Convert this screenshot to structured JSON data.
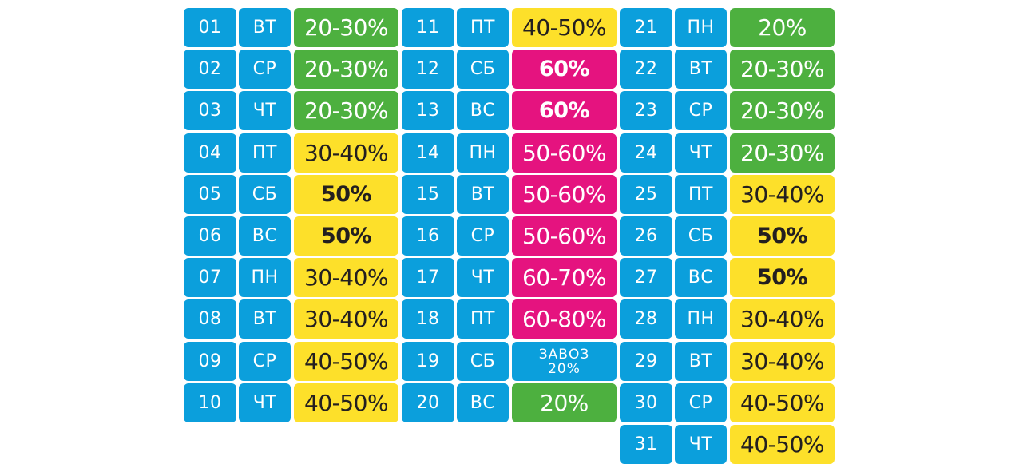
{
  "colors": {
    "blue": "#0b9fdc",
    "green": "#4db03f",
    "yellow": "#fde02a",
    "pink": "#e5137f"
  },
  "calendar": [
    {
      "rows": [
        {
          "num": "01",
          "day": "ВТ",
          "value": "20-30%",
          "color": "green",
          "bold": false
        },
        {
          "num": "02",
          "day": "СР",
          "value": "20-30%",
          "color": "green",
          "bold": false
        },
        {
          "num": "03",
          "day": "ЧТ",
          "value": "20-30%",
          "color": "green",
          "bold": false
        },
        {
          "num": "04",
          "day": "ПТ",
          "value": "30-40%",
          "color": "yellow",
          "bold": false
        },
        {
          "num": "05",
          "day": "СБ",
          "value": "50%",
          "color": "yellow",
          "bold": true
        },
        {
          "num": "06",
          "day": "ВС",
          "value": "50%",
          "color": "yellow",
          "bold": true
        },
        {
          "num": "07",
          "day": "ПН",
          "value": "30-40%",
          "color": "yellow",
          "bold": false
        },
        {
          "num": "08",
          "day": "ВТ",
          "value": "30-40%",
          "color": "yellow",
          "bold": false
        },
        {
          "num": "09",
          "day": "СР",
          "value": "40-50%",
          "color": "yellow",
          "bold": false
        },
        {
          "num": "10",
          "day": "ЧТ",
          "value": "40-50%",
          "color": "yellow",
          "bold": false
        }
      ]
    },
    {
      "rows": [
        {
          "num": "11",
          "day": "ПТ",
          "value": "40-50%",
          "color": "yellow",
          "bold": false
        },
        {
          "num": "12",
          "day": "СБ",
          "value": "60%",
          "color": "pink",
          "bold": true
        },
        {
          "num": "13",
          "day": "ВС",
          "value": "60%",
          "color": "pink",
          "bold": true
        },
        {
          "num": "14",
          "day": "ПН",
          "value": "50-60%",
          "color": "pink",
          "bold": false
        },
        {
          "num": "15",
          "day": "ВТ",
          "value": "50-60%",
          "color": "pink",
          "bold": false
        },
        {
          "num": "16",
          "day": "СР",
          "value": "50-60%",
          "color": "pink",
          "bold": false
        },
        {
          "num": "17",
          "day": "ЧТ",
          "value": "60-70%",
          "color": "pink",
          "bold": false
        },
        {
          "num": "18",
          "day": "ПТ",
          "value": "60-80%",
          "color": "pink",
          "bold": false
        },
        {
          "num": "19",
          "day": "СБ",
          "value": "ЗАВОЗ",
          "value2": "20%",
          "color": "blue",
          "bold": false
        },
        {
          "num": "20",
          "day": "ВС",
          "value": "20%",
          "color": "green",
          "bold": false
        }
      ]
    },
    {
      "rows": [
        {
          "num": "21",
          "day": "ПН",
          "value": "20%",
          "color": "green",
          "bold": false
        },
        {
          "num": "22",
          "day": "ВТ",
          "value": "20-30%",
          "color": "green",
          "bold": false
        },
        {
          "num": "23",
          "day": "СР",
          "value": "20-30%",
          "color": "green",
          "bold": false
        },
        {
          "num": "24",
          "day": "ЧТ",
          "value": "20-30%",
          "color": "green",
          "bold": false
        },
        {
          "num": "25",
          "day": "ПТ",
          "value": "30-40%",
          "color": "yellow",
          "bold": false
        },
        {
          "num": "26",
          "day": "СБ",
          "value": "50%",
          "color": "yellow",
          "bold": true
        },
        {
          "num": "27",
          "day": "ВС",
          "value": "50%",
          "color": "yellow",
          "bold": true
        },
        {
          "num": "28",
          "day": "ПН",
          "value": "30-40%",
          "color": "yellow",
          "bold": false
        },
        {
          "num": "29",
          "day": "ВТ",
          "value": "30-40%",
          "color": "yellow",
          "bold": false
        },
        {
          "num": "30",
          "day": "СР",
          "value": "40-50%",
          "color": "yellow",
          "bold": false
        },
        {
          "num": "31",
          "day": "ЧТ",
          "value": "40-50%",
          "color": "yellow",
          "bold": false
        }
      ]
    }
  ]
}
